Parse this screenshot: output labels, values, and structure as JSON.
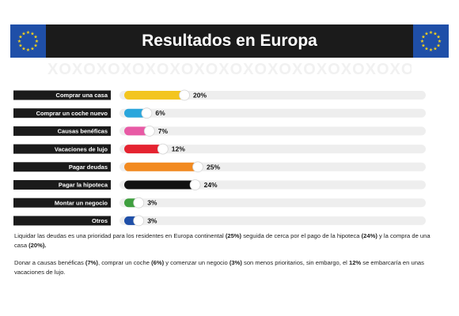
{
  "header": {
    "title": "Resultados en Europa",
    "flag_color": "#1f4fa8",
    "star_color": "#f5d21a"
  },
  "watermark": {
    "text": "XOXOXOXOXOXOXOXOXOXOXOXOXOXOXOXOXOXOXOXOXO"
  },
  "chart_data": {
    "type": "bar",
    "orientation": "horizontal",
    "categories": [
      "Comprar una casa",
      "Comprar un coche nuevo",
      "Causas benéficas",
      "Vacaciones de lujo",
      "Pagar deudas",
      "Pagar la hipoteca",
      "Montar un negocio",
      "Otros"
    ],
    "values": [
      20,
      6,
      7,
      12,
      25,
      24,
      3,
      3
    ],
    "value_labels": [
      "20%",
      "6%",
      "7%",
      "12%",
      "25%",
      "24%",
      "3%",
      "3%"
    ],
    "colors": [
      "#f3c51f",
      "#2aa6dc",
      "#e85aa5",
      "#e52330",
      "#f28a20",
      "#111111",
      "#3f9f3f",
      "#1f4fa8"
    ],
    "track_color": "#eeeeee",
    "label_bg": "#1b1b1b",
    "xlim": [
      0,
      100
    ],
    "title": "Resultados en Europa",
    "xlabel": "",
    "ylabel": ""
  },
  "footer": {
    "p1": [
      {
        "t": "Liquidar las deudas es una prioridad para los residentes en Europa continental ",
        "b": false
      },
      {
        "t": "(25%)",
        "b": true
      },
      {
        "t": " seguida de cerca por el pago de la hipoteca ",
        "b": false
      },
      {
        "t": "(24%)",
        "b": true
      },
      {
        "t": " y la compra de una casa ",
        "b": false
      },
      {
        "t": "(20%).",
        "b": true
      }
    ],
    "p2": [
      {
        "t": "Donar a causas benéficas ",
        "b": false
      },
      {
        "t": "(7%)",
        "b": true
      },
      {
        "t": ", comprar un coche ",
        "b": false
      },
      {
        "t": "(6%)",
        "b": true
      },
      {
        "t": " y comenzar un negocio ",
        "b": false
      },
      {
        "t": "(3%)",
        "b": true
      },
      {
        "t": " son menos prioritarios, sin embargo, el ",
        "b": false
      },
      {
        "t": "12%",
        "b": true
      },
      {
        "t": " se embarcaría en unas vacaciones de lujo.",
        "b": false
      }
    ]
  }
}
